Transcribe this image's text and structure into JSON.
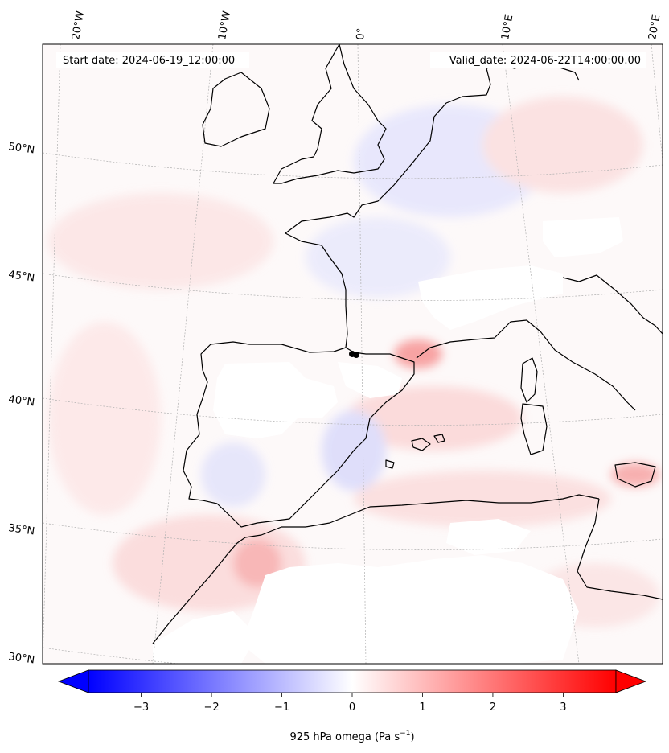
{
  "map": {
    "start_date": "Start date: 2024-06-19_12:00:00",
    "valid_date": "Valid_date: 2024-06-22T14:00:00.00",
    "lon_labels": [
      "20°W",
      "10°W",
      "0°",
      "10°E",
      "20°E"
    ],
    "lat_labels": [
      "50°N",
      "45°N",
      "40°N",
      "35°N",
      "30°N"
    ],
    "coastline_color": "#000000",
    "gridline_color": "#b0b0b0",
    "marker_color": "#000000"
  },
  "colorbar": {
    "label": "925 hPa omega (Pa s",
    "label_sup": "−1",
    "label_close": ")",
    "ticks": [
      -3,
      -2,
      -1,
      0,
      1,
      2,
      3
    ],
    "tick_labels": [
      "−3",
      "−2",
      "−1",
      "0",
      "1",
      "2",
      "3"
    ],
    "range": [
      -3.75,
      3.75
    ],
    "extend": "both",
    "cmap": "bwr",
    "low_color": "#0000ff",
    "mid_color": "#ffffff",
    "high_color": "#ff0000"
  }
}
